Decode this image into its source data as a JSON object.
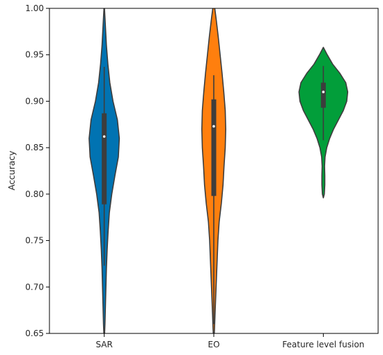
{
  "chart_data": {
    "type": "violin",
    "title": "",
    "xlabel": "",
    "ylabel": "Accuracy",
    "ylim": [
      0.65,
      1.0
    ],
    "yticks": [
      "0.65",
      "0.70",
      "0.75",
      "0.80",
      "0.85",
      "0.90",
      "0.95",
      "1.00"
    ],
    "categories": [
      "SAR",
      "EO",
      "Feature level fusion"
    ],
    "grid": false,
    "legend": "none",
    "colors": [
      "#0173b2",
      "#ff7f0e",
      "#029e3a"
    ],
    "outline_color": "#3d3d3d",
    "violins": [
      {
        "name": "SAR",
        "min": 0.723,
        "q1": 0.789,
        "median": 0.862,
        "q3": 0.887,
        "max": 0.937,
        "density": [
          [
            0.64,
            0.0
          ],
          [
            0.66,
            0.03
          ],
          [
            0.68,
            0.05
          ],
          [
            0.7,
            0.07
          ],
          [
            0.72,
            0.09
          ],
          [
            0.74,
            0.12
          ],
          [
            0.76,
            0.16
          ],
          [
            0.78,
            0.21
          ],
          [
            0.8,
            0.31
          ],
          [
            0.82,
            0.44
          ],
          [
            0.84,
            0.58
          ],
          [
            0.86,
            0.62
          ],
          [
            0.88,
            0.54
          ],
          [
            0.9,
            0.36
          ],
          [
            0.92,
            0.23
          ],
          [
            0.94,
            0.15
          ],
          [
            0.96,
            0.09
          ],
          [
            0.98,
            0.05
          ],
          [
            0.995,
            0.02
          ],
          [
            1.005,
            0.0
          ]
        ]
      },
      {
        "name": "EO",
        "min": 0.66,
        "q1": 0.798,
        "median": 0.873,
        "q3": 0.902,
        "max": 0.928,
        "density": [
          [
            0.64,
            0.0
          ],
          [
            0.655,
            0.03
          ],
          [
            0.67,
            0.05
          ],
          [
            0.69,
            0.08
          ],
          [
            0.71,
            0.11
          ],
          [
            0.73,
            0.14
          ],
          [
            0.75,
            0.17
          ],
          [
            0.77,
            0.22
          ],
          [
            0.79,
            0.31
          ],
          [
            0.81,
            0.38
          ],
          [
            0.83,
            0.42
          ],
          [
            0.85,
            0.47
          ],
          [
            0.87,
            0.49
          ],
          [
            0.89,
            0.47
          ],
          [
            0.91,
            0.41
          ],
          [
            0.93,
            0.34
          ],
          [
            0.95,
            0.26
          ],
          [
            0.97,
            0.18
          ],
          [
            0.99,
            0.09
          ],
          [
            1.008,
            0.0
          ]
        ]
      },
      {
        "name": "Feature level fusion",
        "min": 0.858,
        "q1": 0.893,
        "median": 0.91,
        "q3": 0.92,
        "max": 0.938,
        "density": [
          [
            0.796,
            0.0
          ],
          [
            0.8,
            0.04
          ],
          [
            0.81,
            0.06
          ],
          [
            0.82,
            0.06
          ],
          [
            0.83,
            0.05
          ],
          [
            0.84,
            0.07
          ],
          [
            0.85,
            0.14
          ],
          [
            0.86,
            0.26
          ],
          [
            0.87,
            0.42
          ],
          [
            0.88,
            0.62
          ],
          [
            0.89,
            0.82
          ],
          [
            0.9,
            0.96
          ],
          [
            0.91,
            1.0
          ],
          [
            0.92,
            0.92
          ],
          [
            0.93,
            0.68
          ],
          [
            0.94,
            0.38
          ],
          [
            0.95,
            0.16
          ],
          [
            0.958,
            0.0
          ]
        ]
      }
    ]
  }
}
